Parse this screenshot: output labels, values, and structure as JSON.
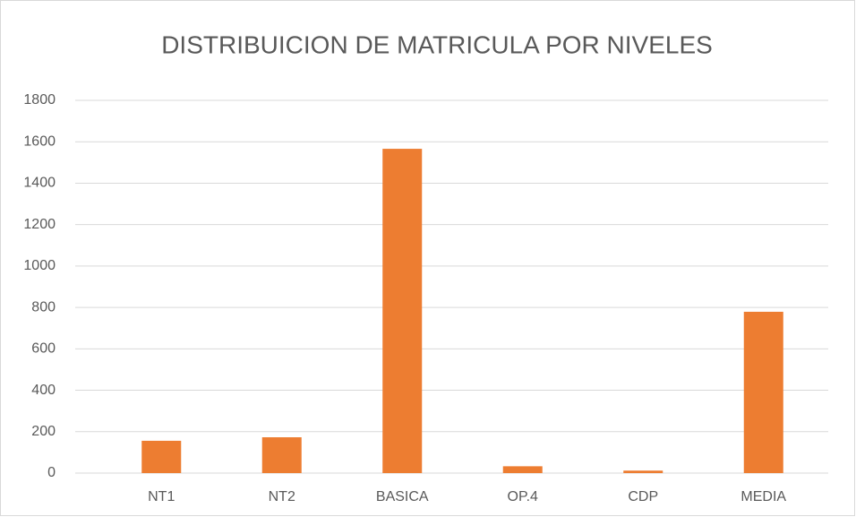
{
  "chart_data": {
    "type": "bar",
    "title": "DISTRIBUICION DE MATRICULA POR NIVELES",
    "categories": [
      "NT1",
      "NT2",
      "BASICA",
      "OP.4",
      "CDP",
      "MEDIA"
    ],
    "values": [
      156,
      173,
      1566,
      33,
      12,
      779
    ],
    "color": "#ed7d31",
    "ylim": [
      0,
      1800
    ],
    "yticks": [
      0,
      200,
      400,
      600,
      800,
      1000,
      1200,
      1400,
      1600,
      1800
    ],
    "grid": true
  }
}
